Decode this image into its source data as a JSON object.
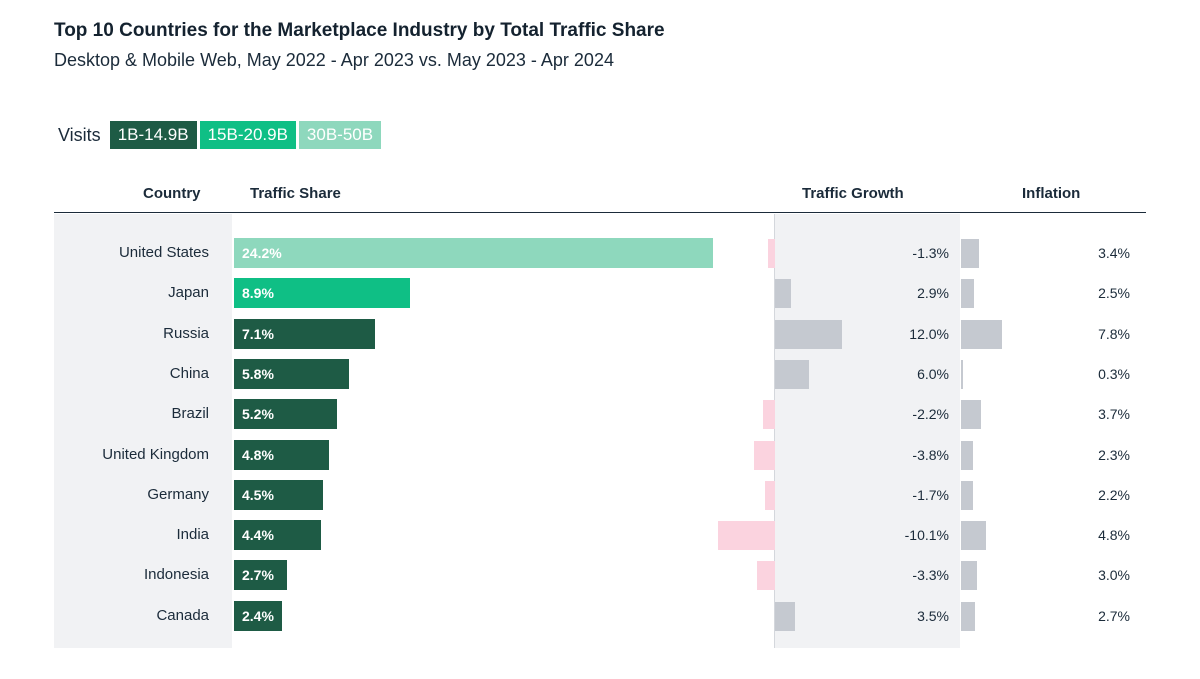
{
  "chart_data": {
    "type": "bar",
    "title": "Top 10 Countries for the Marketplace Industry by Total Traffic Share",
    "subtitle": "Desktop & Mobile Web, May 2022 - Apr 2023 vs. May 2023 - Apr 2024",
    "legend": {
      "label": "Visits",
      "items": [
        {
          "key": "low",
          "label": "1B-14.9B",
          "color": "#1e5b45"
        },
        {
          "key": "mid",
          "label": "15B-20.9B",
          "color": "#0fbf85"
        },
        {
          "key": "high",
          "label": "30B-50B",
          "color": "#8ed8bd"
        }
      ]
    },
    "columns": {
      "country": "Country",
      "share": "Traffic Share",
      "growth": "Traffic Growth",
      "inflation": "Inflation"
    },
    "categories": [
      "United States",
      "Japan",
      "Russia",
      "China",
      "Brazil",
      "United Kingdom",
      "Germany",
      "India",
      "Indonesia",
      "Canada"
    ],
    "series": [
      {
        "name": "Traffic Share",
        "unit": "%",
        "values": [
          24.2,
          8.9,
          7.1,
          5.8,
          5.2,
          4.8,
          4.5,
          4.4,
          2.7,
          2.4
        ],
        "labels": [
          "24.2%",
          "8.9%",
          "7.1%",
          "5.8%",
          "5.2%",
          "4.8%",
          "4.5%",
          "4.4%",
          "2.7%",
          "2.4%"
        ],
        "visit_tier": [
          "high",
          "mid",
          "low",
          "low",
          "low",
          "low",
          "low",
          "low",
          "low",
          "low"
        ]
      },
      {
        "name": "Traffic Growth",
        "unit": "%",
        "values": [
          -1.3,
          2.9,
          12.0,
          6.0,
          -2.2,
          -3.8,
          -1.7,
          -10.1,
          -3.3,
          3.5
        ],
        "labels": [
          "-1.3%",
          "2.9%",
          "12.0%",
          "6.0%",
          "-2.2%",
          "-3.8%",
          "-1.7%",
          "-10.1%",
          "-3.3%",
          "3.5%"
        ]
      },
      {
        "name": "Inflation",
        "unit": "%",
        "values": [
          3.4,
          2.5,
          7.8,
          0.3,
          3.7,
          2.3,
          2.2,
          4.8,
          3.0,
          2.7
        ],
        "labels": [
          "3.4%",
          "2.5%",
          "7.8%",
          "0.3%",
          "3.7%",
          "2.3%",
          "2.2%",
          "4.8%",
          "3.0%",
          "2.7%"
        ]
      }
    ],
    "colors": {
      "positive": "#c5c9d0",
      "negative": "#fbd3df",
      "panel": "#f1f2f4"
    }
  }
}
